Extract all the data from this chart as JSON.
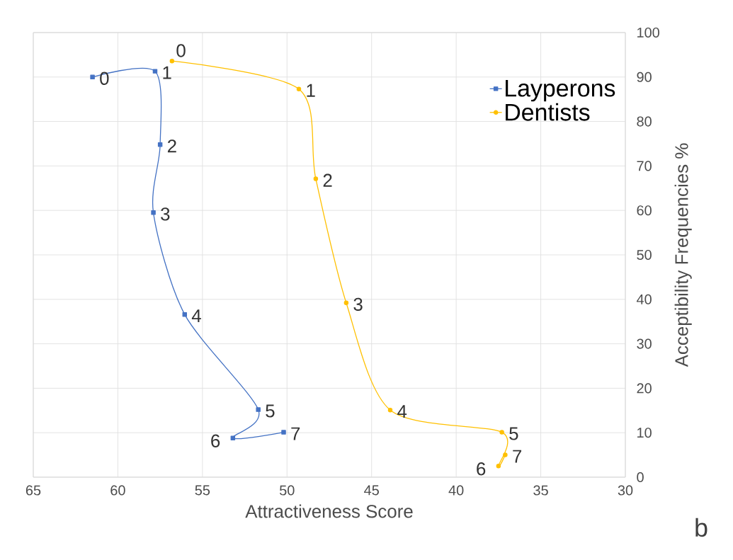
{
  "chart_data": {
    "type": "line",
    "xlabel": "Attractiveness Score",
    "ylabel": "Acceptibility  Frequencies %",
    "annotations": [
      {
        "text": "0",
        "x": 61.5,
        "y": 90
      },
      {
        "text": "1",
        "x": 57.8,
        "y": 91.3
      },
      {
        "text": "2",
        "x": 57.5,
        "y": 74.8
      },
      {
        "text": "3",
        "x": 57.9,
        "y": 59.5
      },
      {
        "text": "4",
        "x": 56.05,
        "y": 36.6
      },
      {
        "text": "5",
        "x": 51.7,
        "y": 15.2
      },
      {
        "text": "6",
        "x": 53.2,
        "y": 8.8
      },
      {
        "text": "7",
        "x": 50.2,
        "y": 10.1
      },
      {
        "text": "0",
        "x": 56.8,
        "y": 93.6
      },
      {
        "text": "1",
        "x": 49.3,
        "y": 87.3
      },
      {
        "text": "2",
        "x": 48.3,
        "y": 67.1
      },
      {
        "text": "3",
        "x": 46.5,
        "y": 39.2
      },
      {
        "text": "4",
        "x": 43.9,
        "y": 15.1
      },
      {
        "text": "5",
        "x": 37.3,
        "y": 10.1
      },
      {
        "text": "6",
        "x": 37.5,
        "y": 2.5
      },
      {
        "text": "7",
        "x": 37.1,
        "y": 5.0
      },
      "b"
    ],
    "xlim": [
      65,
      30
    ],
    "xticks": [
      65,
      60,
      55,
      50,
      45,
      40,
      35,
      30
    ],
    "ylim": [
      0,
      100
    ],
    "yticks": [
      0,
      10,
      20,
      30,
      40,
      50,
      60,
      70,
      80,
      90,
      100
    ],
    "grid": true,
    "legend": "right",
    "series": [
      {
        "name": "Layperons",
        "color": "#4472c4",
        "marker": "square",
        "x": [
          61.5,
          57.8,
          57.5,
          57.9,
          56.05,
          51.7,
          53.2,
          50.2
        ],
        "values": [
          90,
          91.3,
          74.8,
          59.5,
          36.6,
          15.2,
          8.8,
          10.1
        ]
      },
      {
        "name": "Dentists",
        "color": "#ffc000",
        "marker": "circle",
        "x": [
          56.8,
          49.3,
          48.3,
          46.5,
          43.9,
          37.3,
          37.5,
          37.1
        ],
        "values": [
          93.6,
          87.3,
          67.1,
          39.2,
          15.1,
          10.1,
          2.5,
          5.0
        ]
      }
    ]
  }
}
